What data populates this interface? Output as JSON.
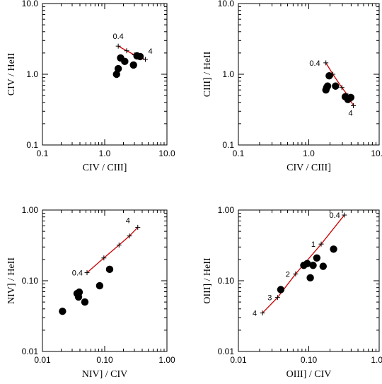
{
  "chart_data": [
    {
      "type": "scatter",
      "xscale": "log",
      "yscale": "log",
      "xlim": [
        0.1,
        10.0
      ],
      "ylim": [
        0.1,
        10.0
      ],
      "xticks": [
        0.1,
        1.0,
        10.0
      ],
      "xticklabels": [
        "0.1",
        "1.0",
        "10.0"
      ],
      "yticks": [
        0.1,
        1.0,
        10.0
      ],
      "yticklabels": [
        "0.1",
        "1.0",
        "10.0"
      ],
      "xlabel": "CIV / CIII]",
      "ylabel": "CIV / HeII",
      "grid": false,
      "points": [
        {
          "x": 1.55,
          "y": 1.0
        },
        {
          "x": 1.65,
          "y": 1.2
        },
        {
          "x": 1.8,
          "y": 1.7
        },
        {
          "x": 2.1,
          "y": 1.52
        },
        {
          "x": 2.9,
          "y": 1.35
        },
        {
          "x": 3.3,
          "y": 1.82
        },
        {
          "x": 3.7,
          "y": 1.78
        }
      ],
      "model_line": {
        "color": "#cc0000",
        "points": [
          {
            "x": 1.65,
            "y": 2.5,
            "label": "0.4"
          },
          {
            "x": 2.25,
            "y": 2.15,
            "label": ""
          },
          {
            "x": 3.0,
            "y": 1.88,
            "label": ""
          },
          {
            "x": 3.8,
            "y": 1.72,
            "label": ""
          },
          {
            "x": 4.5,
            "y": 1.62,
            "label": "4"
          }
        ]
      }
    },
    {
      "type": "scatter",
      "xscale": "log",
      "yscale": "log",
      "xlim": [
        0.1,
        10.0
      ],
      "ylim": [
        0.1,
        10.0
      ],
      "xticks": [
        0.1,
        1.0,
        10.0
      ],
      "xticklabels": [
        "0.1",
        "1.0",
        "10.0"
      ],
      "yticks": [
        0.1,
        1.0,
        10.0
      ],
      "yticklabels": [
        "0.1",
        "1.0",
        "10.0"
      ],
      "xlabel": "CIV / CIII]",
      "ylabel": "CIII] / HeII",
      "grid": false,
      "points": [
        {
          "x": 1.75,
          "y": 0.6
        },
        {
          "x": 1.8,
          "y": 0.65
        },
        {
          "x": 1.85,
          "y": 0.68
        },
        {
          "x": 1.95,
          "y": 0.95
        },
        {
          "x": 2.4,
          "y": 0.68
        },
        {
          "x": 3.3,
          "y": 0.48
        },
        {
          "x": 3.6,
          "y": 0.44
        },
        {
          "x": 3.95,
          "y": 0.47
        }
      ],
      "model_line": {
        "color": "#cc0000",
        "points": [
          {
            "x": 1.75,
            "y": 1.45,
            "label": "0.4"
          },
          {
            "x": 2.2,
            "y": 1.0,
            "label": ""
          },
          {
            "x": 2.95,
            "y": 0.65,
            "label": ""
          },
          {
            "x": 3.6,
            "y": 0.5,
            "label": ""
          },
          {
            "x": 4.3,
            "y": 0.36,
            "label": "4"
          }
        ]
      }
    },
    {
      "type": "scatter",
      "xscale": "log",
      "yscale": "log",
      "xlim": [
        0.01,
        1.0
      ],
      "ylim": [
        0.01,
        1.0
      ],
      "xticks": [
        0.01,
        0.1,
        1.0
      ],
      "xticklabels": [
        "0.01",
        "0.10",
        "1.00"
      ],
      "yticks": [
        0.01,
        0.1,
        1.0
      ],
      "yticklabels": [
        "0.01",
        "0.10",
        "1.00"
      ],
      "xlabel": "NIV] / CIV",
      "ylabel": "NIV] / HeII",
      "grid": false,
      "points": [
        {
          "x": 0.021,
          "y": 0.037
        },
        {
          "x": 0.036,
          "y": 0.066
        },
        {
          "x": 0.038,
          "y": 0.059
        },
        {
          "x": 0.039,
          "y": 0.069
        },
        {
          "x": 0.048,
          "y": 0.05
        },
        {
          "x": 0.083,
          "y": 0.085
        },
        {
          "x": 0.12,
          "y": 0.145
        }
      ],
      "model_line": {
        "color": "#cc0000",
        "points": [
          {
            "x": 0.052,
            "y": 0.13,
            "label": "0.4"
          },
          {
            "x": 0.097,
            "y": 0.21,
            "label": ""
          },
          {
            "x": 0.17,
            "y": 0.32,
            "label": ""
          },
          {
            "x": 0.25,
            "y": 0.43,
            "label": ""
          },
          {
            "x": 0.34,
            "y": 0.57,
            "label": "4"
          }
        ]
      }
    },
    {
      "type": "scatter",
      "xscale": "log",
      "yscale": "log",
      "xlim": [
        0.01,
        1.0
      ],
      "ylim": [
        0.01,
        1.0
      ],
      "xticks": [
        0.01,
        0.1,
        1.0
      ],
      "xticklabels": [
        "0.01",
        "0.10",
        "1.00"
      ],
      "yticks": [
        0.01,
        0.1,
        1.0
      ],
      "yticklabels": [
        "0.01",
        "0.10",
        "1.00"
      ],
      "xlabel": "OIII] / CIV",
      "ylabel": "OIII] / HeII",
      "grid": false,
      "points": [
        {
          "x": 0.04,
          "y": 0.075
        },
        {
          "x": 0.085,
          "y": 0.165
        },
        {
          "x": 0.095,
          "y": 0.175
        },
        {
          "x": 0.105,
          "y": 0.11
        },
        {
          "x": 0.115,
          "y": 0.165
        },
        {
          "x": 0.13,
          "y": 0.21
        },
        {
          "x": 0.16,
          "y": 0.16
        },
        {
          "x": 0.225,
          "y": 0.28
        }
      ],
      "model_line": {
        "color": "#cc0000",
        "points": [
          {
            "x": 0.022,
            "y": 0.035,
            "label": "4"
          },
          {
            "x": 0.036,
            "y": 0.058,
            "label": "3"
          },
          {
            "x": 0.065,
            "y": 0.125,
            "label": "2"
          },
          {
            "x": 0.15,
            "y": 0.33,
            "label": "1"
          },
          {
            "x": 0.32,
            "y": 0.85,
            "label": "0.4"
          }
        ]
      }
    }
  ]
}
